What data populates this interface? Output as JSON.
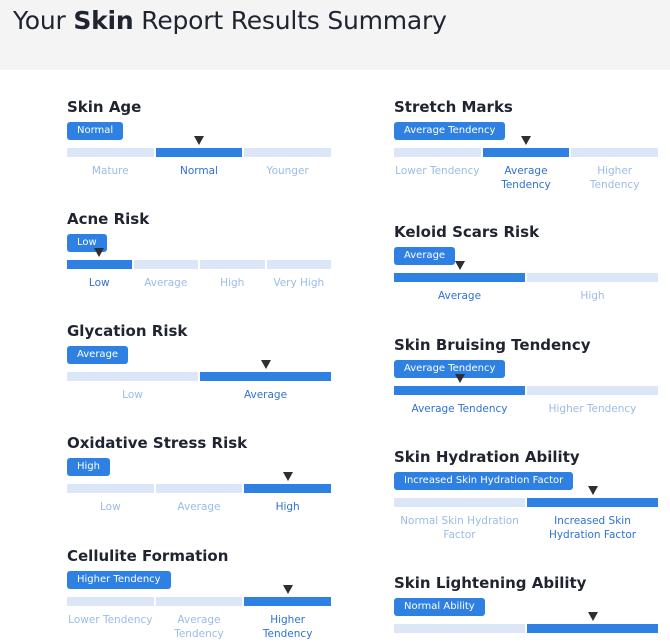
{
  "header": {
    "title_prefix": "Your ",
    "title_bold": "Skin",
    "title_suffix": " Report Results Summary"
  },
  "colors": {
    "accent": "#2f80e3",
    "track": "#dbe7f6",
    "label_inactive": "#9bbce6",
    "label_active": "#2f72d4",
    "marker": "#2e2e33",
    "header_bg": "#f4f4f5"
  },
  "left_column": [
    {
      "title": "Skin Age",
      "badge": "Normal",
      "labels": [
        "Mature",
        "Normal",
        "Younger"
      ],
      "active_index": 1
    },
    {
      "title": "Acne Risk",
      "badge": "Low",
      "labels": [
        "Low",
        "Average",
        "High",
        "Very High"
      ],
      "active_index": 0
    },
    {
      "title": "Glycation Risk",
      "badge": "Average",
      "labels": [
        "Low",
        "Average"
      ],
      "active_index": 1
    },
    {
      "title": "Oxidative Stress Risk",
      "badge": "High",
      "labels": [
        "Low",
        "Average",
        "High"
      ],
      "active_index": 2
    },
    {
      "title": "Cellulite Formation",
      "badge": "Higher Tendency",
      "labels": [
        "Lower Tendency",
        "Average Tendency",
        "Higher Tendency"
      ],
      "active_index": 2
    }
  ],
  "right_column": [
    {
      "title": "Stretch Marks",
      "badge": "Average Tendency",
      "labels": [
        "Lower Tendency",
        "Average Tendency",
        "Higher Tendency"
      ],
      "active_index": 1
    },
    {
      "title": "Keloid Scars Risk",
      "badge": "Average",
      "labels": [
        "Average",
        "High"
      ],
      "active_index": 0
    },
    {
      "title": "Skin Bruising Tendency",
      "badge": "Average Tendency",
      "labels": [
        "Average Tendency",
        "Higher Tendency"
      ],
      "active_index": 0
    },
    {
      "title": "Skin Hydration Ability",
      "badge": "Increased Skin Hydration Factor",
      "labels": [
        "Normal Skin Hydration Factor",
        "Increased Skin Hydration Factor"
      ],
      "active_index": 1
    },
    {
      "title": "Skin Lightening Ability",
      "badge": "Normal Ability",
      "labels": [
        "",
        ""
      ],
      "active_index": 1
    }
  ]
}
